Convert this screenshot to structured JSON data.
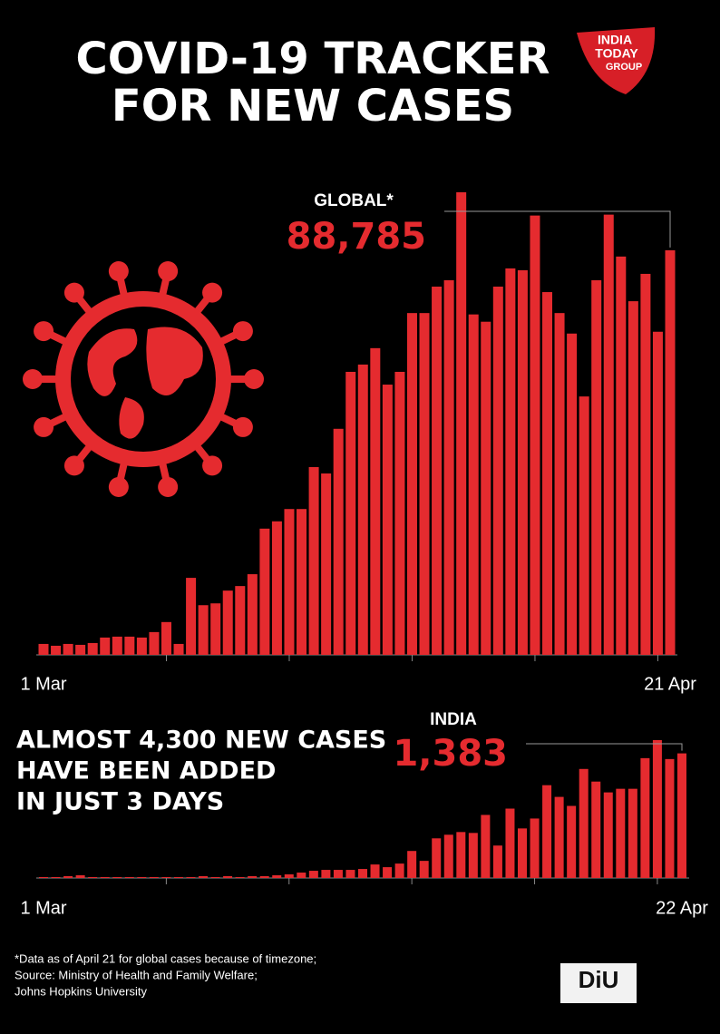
{
  "header": {
    "title": [
      "COVID-19 TRACKER",
      "FOR NEW CASES"
    ],
    "logo": [
      "INDIA",
      "TODAY",
      "GROUP"
    ]
  },
  "headline": [
    "ALMOST 4,300 NEW CASES",
    "HAVE BEEN ADDED",
    "IN JUST 3 DAYS"
  ],
  "footnote": [
    "*Data as of April 21 for global cases  because of timezone;",
    "Source: Ministry of Health and Family Welfare;",
    "Johns Hopkins University"
  ],
  "diu_logo": "DiU",
  "chart_data": [
    {
      "type": "bar",
      "label": "GLOBAL*",
      "color": "#e52b2f",
      "categories": [
        "1 Mar",
        null,
        null,
        null,
        null,
        null,
        null,
        null,
        null,
        null,
        null,
        null,
        null,
        null,
        null,
        null,
        null,
        null,
        null,
        null,
        null,
        null,
        null,
        null,
        null,
        null,
        null,
        null,
        null,
        null,
        null,
        null,
        null,
        null,
        null,
        null,
        null,
        null,
        null,
        null,
        null,
        null,
        null,
        null,
        null,
        null,
        null,
        null,
        null,
        null,
        null,
        "21 Apr"
      ],
      "values": [
        2400,
        2000,
        2400,
        2200,
        2600,
        3800,
        4000,
        4000,
        3800,
        5000,
        7200,
        2400,
        16900,
        10900,
        11300,
        14100,
        15100,
        17700,
        27700,
        29300,
        32000,
        32000,
        41200,
        39800,
        49600,
        62100,
        63700,
        67300,
        59300,
        62100,
        75000,
        75000,
        80800,
        82200,
        101500,
        74700,
        73100,
        80800,
        84800,
        84400,
        96400,
        79600,
        75000,
        70500,
        56700,
        82200,
        96600,
        87400,
        77600,
        83600,
        70900,
        88785
      ],
      "value_labels": [
        null,
        null,
        null,
        null,
        null,
        null,
        null,
        null,
        null,
        null,
        null,
        null,
        null,
        null,
        null,
        null,
        null,
        null,
        null,
        null,
        null,
        null,
        null,
        null,
        null,
        null,
        null,
        null,
        null,
        null,
        null,
        null,
        null,
        null,
        null,
        null,
        null,
        null,
        null,
        null,
        null,
        null,
        null,
        null,
        null,
        null,
        null,
        null,
        null,
        null,
        null,
        "88,785"
      ]
    },
    {
      "type": "bar",
      "label": "INDIA",
      "color": "#e52b2f",
      "categories": [
        "1 Mar",
        null,
        null,
        null,
        null,
        null,
        null,
        null,
        null,
        null,
        null,
        null,
        null,
        null,
        null,
        null,
        null,
        null,
        null,
        null,
        null,
        null,
        null,
        null,
        null,
        null,
        null,
        null,
        null,
        null,
        null,
        null,
        null,
        null,
        null,
        null,
        null,
        null,
        null,
        null,
        null,
        null,
        null,
        null,
        null,
        null,
        null,
        null,
        null,
        null,
        null,
        null,
        "22 Apr"
      ],
      "values": [
        10,
        10,
        20,
        30,
        10,
        10,
        10,
        10,
        10,
        10,
        10,
        10,
        10,
        20,
        10,
        20,
        10,
        20,
        20,
        30,
        40,
        60,
        80,
        90,
        90,
        90,
        100,
        150,
        120,
        160,
        300,
        190,
        440,
        480,
        510,
        500,
        700,
        360,
        770,
        550,
        660,
        1030,
        900,
        800,
        1210,
        1070,
        950,
        990,
        990,
        1330,
        1530,
        1320,
        1383
      ],
      "value_labels": [
        null,
        null,
        null,
        null,
        null,
        null,
        null,
        null,
        null,
        null,
        null,
        null,
        null,
        null,
        null,
        null,
        null,
        null,
        null,
        null,
        null,
        null,
        null,
        null,
        null,
        null,
        null,
        null,
        null,
        null,
        null,
        null,
        null,
        null,
        null,
        null,
        null,
        null,
        null,
        null,
        null,
        null,
        null,
        null,
        null,
        null,
        null,
        null,
        null,
        null,
        null,
        null,
        "1,383"
      ]
    }
  ]
}
